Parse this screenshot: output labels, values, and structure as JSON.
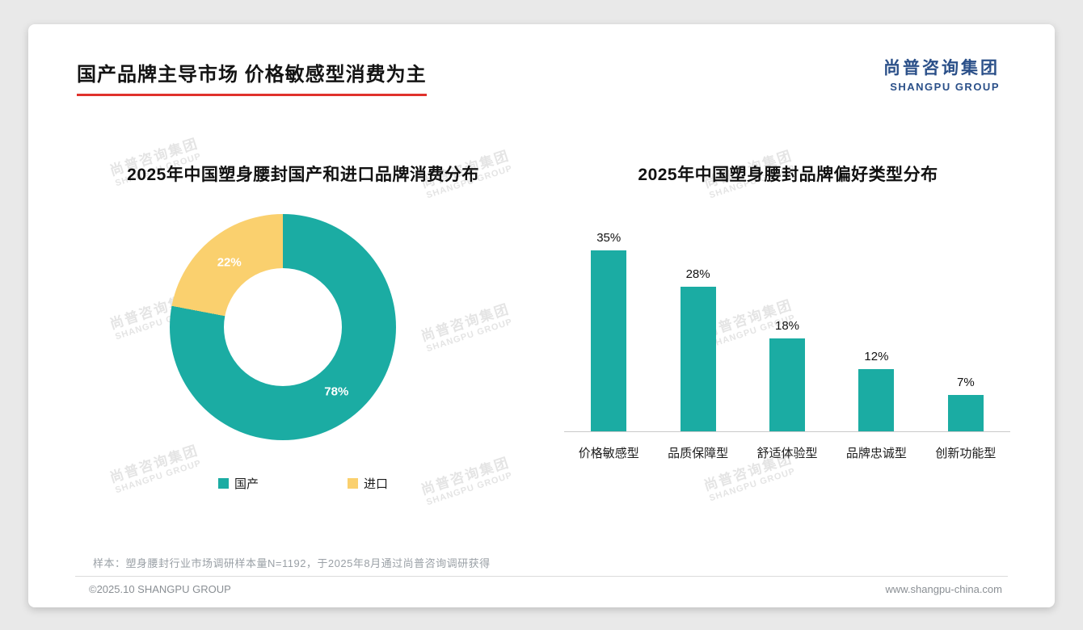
{
  "header": {
    "title": "国产品牌主导市场 价格敏感型消费为主",
    "logo": {
      "cn": "尚普咨询集团",
      "en": "SHANGPU GROUP"
    }
  },
  "watermark": {
    "cn": "尚普咨询集团",
    "en": "SHANGPU GROUP"
  },
  "colors": {
    "teal": "#1BACA3",
    "yellow": "#FAD06E",
    "accent_red": "#E0322C",
    "logo_blue": "#2B5089"
  },
  "chart_data": [
    {
      "type": "pie",
      "donut": true,
      "title": "2025年中国塑身腰封国产和进口品牌消费分布",
      "labels": [
        "国产",
        "进口"
      ],
      "values": [
        78,
        22
      ],
      "data_labels": [
        "78%",
        "22%"
      ],
      "colors": [
        "#1BACA3",
        "#FAD06E"
      ],
      "legend_position": "bottom"
    },
    {
      "type": "bar",
      "title": "2025年中国塑身腰封品牌偏好类型分布",
      "categories": [
        "价格敏感型",
        "品质保障型",
        "舒适体验型",
        "品牌忠诚型",
        "创新功能型"
      ],
      "values": [
        35,
        28,
        18,
        12,
        7
      ],
      "data_labels": [
        "35%",
        "28%",
        "18%",
        "12%",
        "7%"
      ],
      "bar_color": "#1BACA3",
      "ylim": [
        0,
        40
      ],
      "grid": false,
      "legend": false
    }
  ],
  "footer": {
    "note": "样本：塑身腰封行业市场调研样本量N=1192，于2025年8月通过尚普咨询调研获得",
    "copyright": "©2025.10 SHANGPU GROUP",
    "website": "www.shangpu-china.com"
  }
}
